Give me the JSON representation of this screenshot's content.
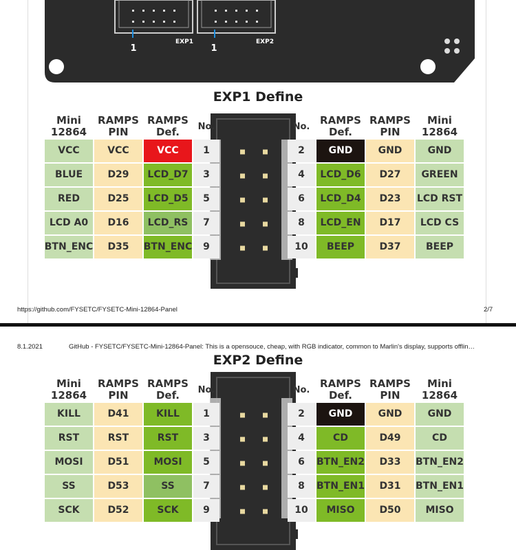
{
  "board": {
    "labels": [
      "1",
      "EXP1",
      "1",
      "EXP2"
    ]
  },
  "page1_footer": {
    "url": "https://github.com/FYSETC/FYSETC-Mini-12864-Panel",
    "page": "2/7"
  },
  "page2_header": {
    "date": "8.1.2021",
    "title": "GitHub - FYSETC/FYSETC-Mini-12864-Panel: This is a opensouce, cheap, with RGB indicator, common to Marlin's display, supports offlin…"
  },
  "sections": [
    {
      "title": "EXP1 Define",
      "header": [
        "Mini\n12864",
        "RAMPS\nPIN",
        "RAMPS\nDef.",
        "No.",
        "No.",
        "RAMPS\nDef.",
        "RAMPS\nPIN",
        "Mini\n12864"
      ],
      "rows": [
        [
          "VCC",
          "VCC",
          "VCC",
          1,
          2,
          "GND",
          "GND",
          "GND"
        ],
        [
          "BLUE",
          "D29",
          "LCD_D7",
          3,
          4,
          "LCD_D6",
          "D27",
          "GREEN"
        ],
        [
          "RED",
          "D25",
          "LCD_D5",
          5,
          6,
          "LCD_D4",
          "D23",
          "LCD RST"
        ],
        [
          "LCD A0",
          "D16",
          "LCD_RS",
          7,
          8,
          "LCD_EN",
          "D17",
          "LCD CS"
        ],
        [
          "BTN_ENC",
          "D35",
          "BTN_ENC",
          9,
          10,
          "BEEP",
          "D37",
          "BEEP"
        ]
      ],
      "def_colors": [
        [
          "#e8161b",
          "#1c1410"
        ],
        [
          "#7fba27",
          "#7fba27"
        ],
        [
          "#7fba27",
          "#7fba27"
        ],
        [
          "#8fc062",
          "#7fba27"
        ],
        [
          "#7fba27",
          "#7fba27"
        ]
      ]
    },
    {
      "title": "EXP2 Define",
      "header": [
        "Mini\n12864",
        "RAMPS\nPIN",
        "RAMPS\nDef.",
        "No.",
        "No.",
        "RAMPS\nDef.",
        "RAMPS\nPIN",
        "Mini\n12864"
      ],
      "rows": [
        [
          "KILL",
          "D41",
          "KILL",
          1,
          2,
          "GND",
          "GND",
          "GND"
        ],
        [
          "RST",
          "RST",
          "RST",
          3,
          4,
          "CD",
          "D49",
          "CD"
        ],
        [
          "MOSI",
          "D51",
          "MOSI",
          5,
          6,
          "BTN_EN2",
          "D33",
          "BTN_EN2"
        ],
        [
          "SS",
          "D53",
          "SS",
          7,
          8,
          "BTN_EN1",
          "D31",
          "BTN_EN1"
        ],
        [
          "SCK",
          "D52",
          "SCK",
          9,
          10,
          "MISO",
          "D50",
          "MISO"
        ]
      ],
      "def_colors": [
        [
          "#7fba27",
          "#1c1410"
        ],
        [
          "#7fba27",
          "#7fba27"
        ],
        [
          "#7fba27",
          "#7fba27"
        ],
        [
          "#8fc062",
          "#7fba27"
        ],
        [
          "#7fba27",
          "#7fba27"
        ]
      ]
    }
  ]
}
